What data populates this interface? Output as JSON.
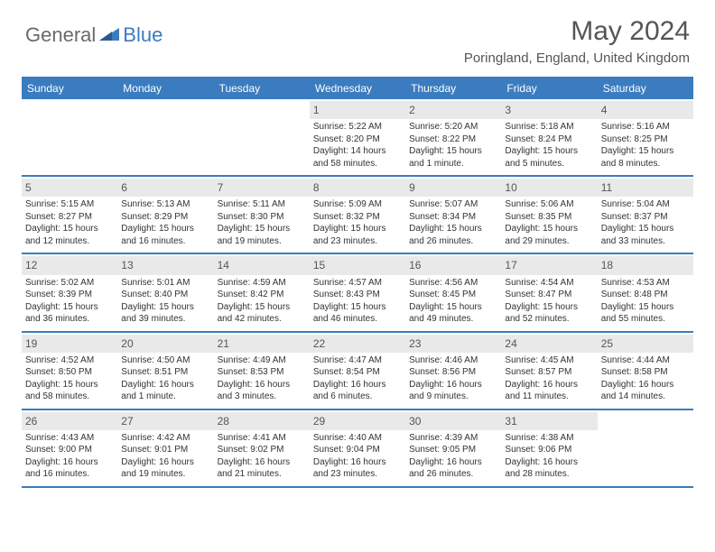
{
  "brand": {
    "prefix": "General",
    "suffix": "Blue"
  },
  "header": {
    "title": "May 2024",
    "location": "Poringland, England, United Kingdom"
  },
  "colors": {
    "accent": "#3a7cbf",
    "header_text": "#555555",
    "body_text": "#333333",
    "daynum_bg": "#e9e9e9",
    "background": "#ffffff"
  },
  "typography": {
    "title_fontsize": 30,
    "location_fontsize": 15,
    "dayheader_fontsize": 12,
    "daynum_fontsize": 12,
    "body_fontsize": 10
  },
  "dayNames": [
    "Sunday",
    "Monday",
    "Tuesday",
    "Wednesday",
    "Thursday",
    "Friday",
    "Saturday"
  ],
  "weeks": [
    [
      {
        "day": "",
        "lines": []
      },
      {
        "day": "",
        "lines": []
      },
      {
        "day": "",
        "lines": []
      },
      {
        "day": "1",
        "lines": [
          "Sunrise: 5:22 AM",
          "Sunset: 8:20 PM",
          "Daylight: 14 hours and 58 minutes."
        ]
      },
      {
        "day": "2",
        "lines": [
          "Sunrise: 5:20 AM",
          "Sunset: 8:22 PM",
          "Daylight: 15 hours and 1 minute."
        ]
      },
      {
        "day": "3",
        "lines": [
          "Sunrise: 5:18 AM",
          "Sunset: 8:24 PM",
          "Daylight: 15 hours and 5 minutes."
        ]
      },
      {
        "day": "4",
        "lines": [
          "Sunrise: 5:16 AM",
          "Sunset: 8:25 PM",
          "Daylight: 15 hours and 8 minutes."
        ]
      }
    ],
    [
      {
        "day": "5",
        "lines": [
          "Sunrise: 5:15 AM",
          "Sunset: 8:27 PM",
          "Daylight: 15 hours and 12 minutes."
        ]
      },
      {
        "day": "6",
        "lines": [
          "Sunrise: 5:13 AM",
          "Sunset: 8:29 PM",
          "Daylight: 15 hours and 16 minutes."
        ]
      },
      {
        "day": "7",
        "lines": [
          "Sunrise: 5:11 AM",
          "Sunset: 8:30 PM",
          "Daylight: 15 hours and 19 minutes."
        ]
      },
      {
        "day": "8",
        "lines": [
          "Sunrise: 5:09 AM",
          "Sunset: 8:32 PM",
          "Daylight: 15 hours and 23 minutes."
        ]
      },
      {
        "day": "9",
        "lines": [
          "Sunrise: 5:07 AM",
          "Sunset: 8:34 PM",
          "Daylight: 15 hours and 26 minutes."
        ]
      },
      {
        "day": "10",
        "lines": [
          "Sunrise: 5:06 AM",
          "Sunset: 8:35 PM",
          "Daylight: 15 hours and 29 minutes."
        ]
      },
      {
        "day": "11",
        "lines": [
          "Sunrise: 5:04 AM",
          "Sunset: 8:37 PM",
          "Daylight: 15 hours and 33 minutes."
        ]
      }
    ],
    [
      {
        "day": "12",
        "lines": [
          "Sunrise: 5:02 AM",
          "Sunset: 8:39 PM",
          "Daylight: 15 hours and 36 minutes."
        ]
      },
      {
        "day": "13",
        "lines": [
          "Sunrise: 5:01 AM",
          "Sunset: 8:40 PM",
          "Daylight: 15 hours and 39 minutes."
        ]
      },
      {
        "day": "14",
        "lines": [
          "Sunrise: 4:59 AM",
          "Sunset: 8:42 PM",
          "Daylight: 15 hours and 42 minutes."
        ]
      },
      {
        "day": "15",
        "lines": [
          "Sunrise: 4:57 AM",
          "Sunset: 8:43 PM",
          "Daylight: 15 hours and 46 minutes."
        ]
      },
      {
        "day": "16",
        "lines": [
          "Sunrise: 4:56 AM",
          "Sunset: 8:45 PM",
          "Daylight: 15 hours and 49 minutes."
        ]
      },
      {
        "day": "17",
        "lines": [
          "Sunrise: 4:54 AM",
          "Sunset: 8:47 PM",
          "Daylight: 15 hours and 52 minutes."
        ]
      },
      {
        "day": "18",
        "lines": [
          "Sunrise: 4:53 AM",
          "Sunset: 8:48 PM",
          "Daylight: 15 hours and 55 minutes."
        ]
      }
    ],
    [
      {
        "day": "19",
        "lines": [
          "Sunrise: 4:52 AM",
          "Sunset: 8:50 PM",
          "Daylight: 15 hours and 58 minutes."
        ]
      },
      {
        "day": "20",
        "lines": [
          "Sunrise: 4:50 AM",
          "Sunset: 8:51 PM",
          "Daylight: 16 hours and 1 minute."
        ]
      },
      {
        "day": "21",
        "lines": [
          "Sunrise: 4:49 AM",
          "Sunset: 8:53 PM",
          "Daylight: 16 hours and 3 minutes."
        ]
      },
      {
        "day": "22",
        "lines": [
          "Sunrise: 4:47 AM",
          "Sunset: 8:54 PM",
          "Daylight: 16 hours and 6 minutes."
        ]
      },
      {
        "day": "23",
        "lines": [
          "Sunrise: 4:46 AM",
          "Sunset: 8:56 PM",
          "Daylight: 16 hours and 9 minutes."
        ]
      },
      {
        "day": "24",
        "lines": [
          "Sunrise: 4:45 AM",
          "Sunset: 8:57 PM",
          "Daylight: 16 hours and 11 minutes."
        ]
      },
      {
        "day": "25",
        "lines": [
          "Sunrise: 4:44 AM",
          "Sunset: 8:58 PM",
          "Daylight: 16 hours and 14 minutes."
        ]
      }
    ],
    [
      {
        "day": "26",
        "lines": [
          "Sunrise: 4:43 AM",
          "Sunset: 9:00 PM",
          "Daylight: 16 hours and 16 minutes."
        ]
      },
      {
        "day": "27",
        "lines": [
          "Sunrise: 4:42 AM",
          "Sunset: 9:01 PM",
          "Daylight: 16 hours and 19 minutes."
        ]
      },
      {
        "day": "28",
        "lines": [
          "Sunrise: 4:41 AM",
          "Sunset: 9:02 PM",
          "Daylight: 16 hours and 21 minutes."
        ]
      },
      {
        "day": "29",
        "lines": [
          "Sunrise: 4:40 AM",
          "Sunset: 9:04 PM",
          "Daylight: 16 hours and 23 minutes."
        ]
      },
      {
        "day": "30",
        "lines": [
          "Sunrise: 4:39 AM",
          "Sunset: 9:05 PM",
          "Daylight: 16 hours and 26 minutes."
        ]
      },
      {
        "day": "31",
        "lines": [
          "Sunrise: 4:38 AM",
          "Sunset: 9:06 PM",
          "Daylight: 16 hours and 28 minutes."
        ]
      },
      {
        "day": "",
        "lines": []
      }
    ]
  ]
}
